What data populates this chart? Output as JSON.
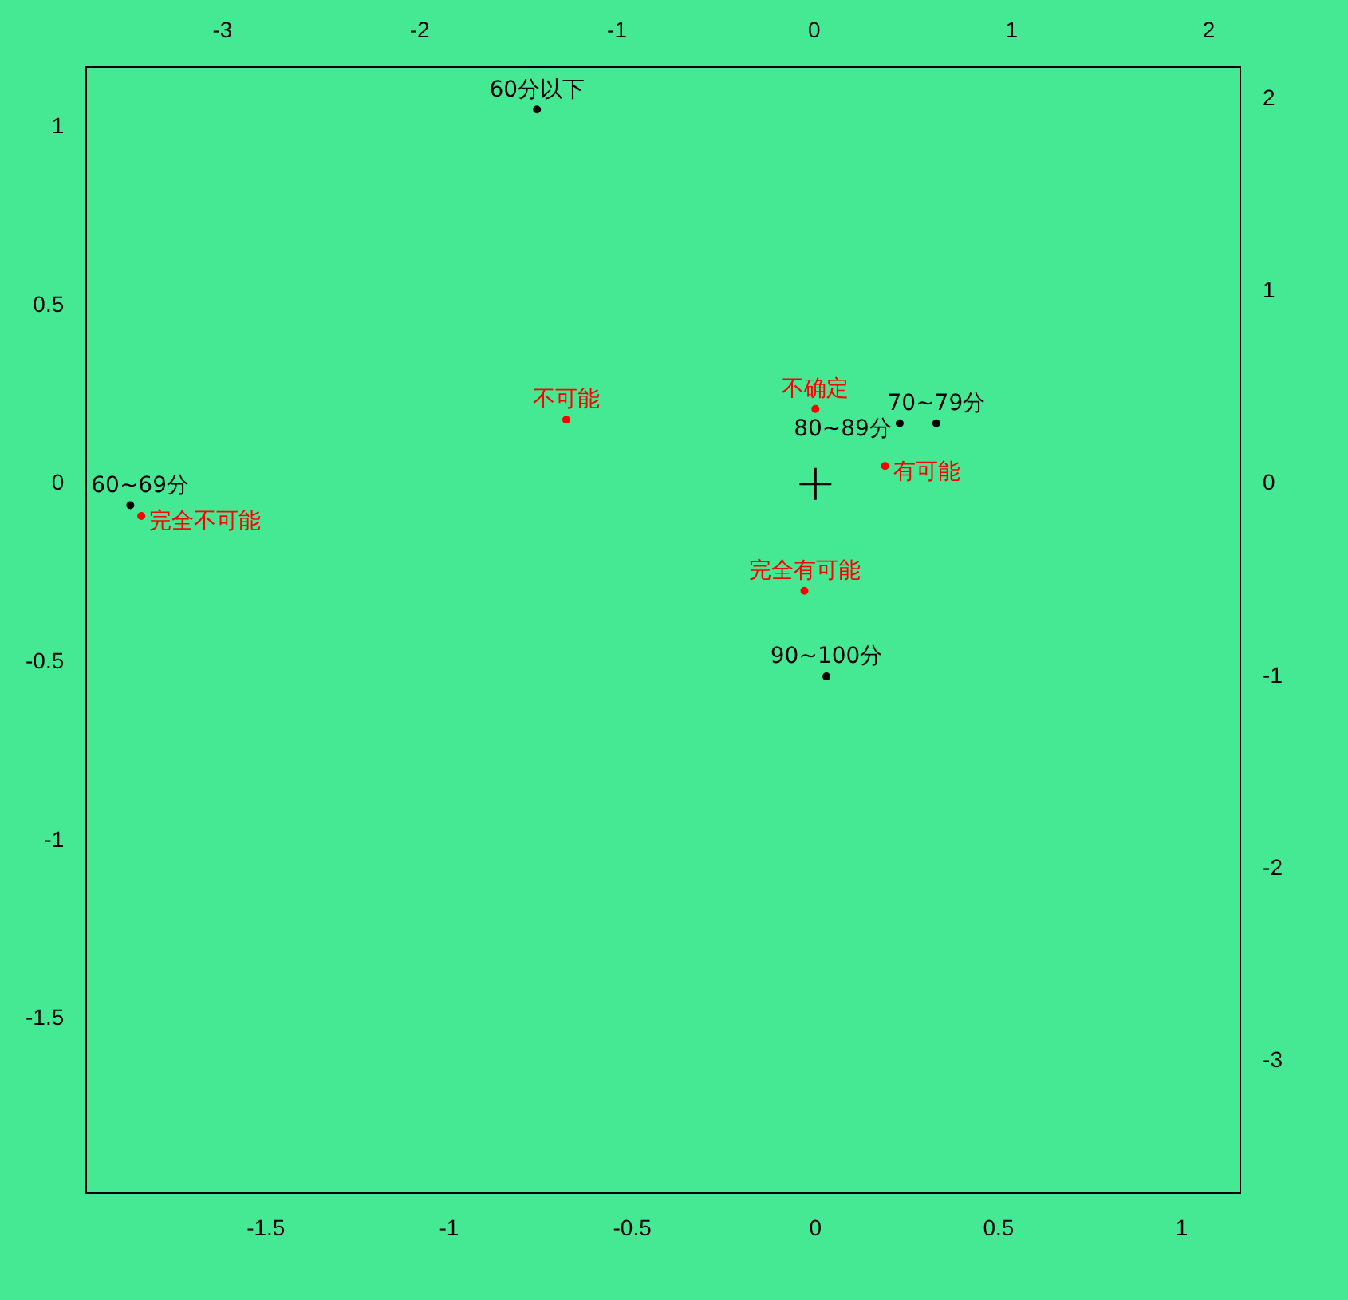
{
  "chart_data": {
    "type": "scatter",
    "marker": "circle",
    "grid": false,
    "legend": false,
    "xlim": [
      -1.99,
      1.16
    ],
    "ylim": [
      -1.99,
      1.17
    ],
    "xticks": [
      -1.5,
      -1.0,
      -0.5,
      0.0,
      0.5,
      1.0
    ],
    "yticks": [
      -1.5,
      -1.0,
      -0.5,
      0.0,
      0.5,
      1.0
    ],
    "x2lim": [
      -3.69,
      2.16
    ],
    "y2lim": [
      -3.69,
      2.17
    ],
    "x2ticks": [
      -3,
      -2,
      -1,
      0,
      1,
      2
    ],
    "y2ticks": [
      -3,
      -2,
      -1,
      0,
      1,
      2
    ],
    "series": [
      {
        "name": "60分以下",
        "color": "#000000",
        "x": [
          -0.76
        ],
        "values": [
          1.05
        ]
      },
      {
        "name": "60~69分",
        "color": "#000000",
        "x": [
          -1.87
        ],
        "values": [
          -0.06
        ]
      },
      {
        "name": "70~79分",
        "color": "#000000",
        "x": [
          0.33
        ],
        "values": [
          0.17
        ]
      },
      {
        "name": "80~89分",
        "color": "#000000",
        "x": [
          0.23
        ],
        "values": [
          0.17
        ]
      },
      {
        "name": "90~100分",
        "color": "#000000",
        "x": [
          0.03
        ],
        "values": [
          -0.54
        ]
      },
      {
        "name": "不可能",
        "color": "#ff0000",
        "x": [
          -0.68
        ],
        "values": [
          0.18
        ]
      },
      {
        "name": "不确定",
        "color": "#ff0000",
        "x": [
          0.0
        ],
        "values": [
          0.21
        ]
      },
      {
        "name": "有可能",
        "color": "#ff0000",
        "x": [
          0.19
        ],
        "values": [
          0.05
        ]
      },
      {
        "name": "完全不可能",
        "color": "#ff0000",
        "x": [
          -1.84
        ],
        "values": [
          -0.09
        ]
      },
      {
        "name": "完全有可能",
        "color": "#ff0000",
        "x": [
          -0.03
        ],
        "values": [
          -0.3
        ]
      },
      {
        "color": "#000000",
        "marker": "cross",
        "x": [
          0
        ],
        "values": [
          0
        ]
      }
    ]
  }
}
